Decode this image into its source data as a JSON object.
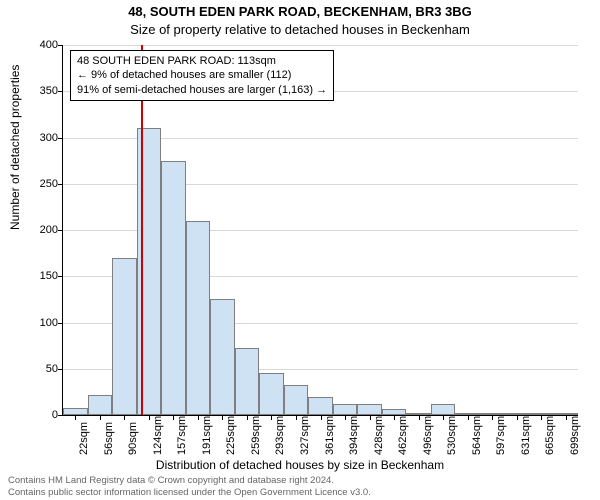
{
  "chart": {
    "type": "histogram",
    "title_main": "48, SOUTH EDEN PARK ROAD, BECKENHAM, BR3 3BG",
    "title_sub": "Size of property relative to detached houses in Beckenham",
    "ylabel": "Number of detached properties",
    "xlabel": "Distribution of detached houses by size in Beckenham",
    "background_color": "#ffffff",
    "bar_fill": "#cfe2f3",
    "bar_border": "#7f7f7f",
    "grid_color": "#d9d9d9",
    "reference_line_color": "#cc0000",
    "reference_value": 113,
    "ylim": [
      0,
      400
    ],
    "ytick_step": 50,
    "yticks": [
      0,
      50,
      100,
      150,
      200,
      250,
      300,
      350,
      400
    ],
    "x_categories": [
      "22sqm",
      "56sqm",
      "90sqm",
      "124sqm",
      "157sqm",
      "191sqm",
      "225sqm",
      "259sqm",
      "293sqm",
      "327sqm",
      "361sqm",
      "394sqm",
      "428sqm",
      "462sqm",
      "496sqm",
      "530sqm",
      "564sqm",
      "597sqm",
      "631sqm",
      "665sqm",
      "699sqm"
    ],
    "values": [
      8,
      22,
      170,
      310,
      275,
      210,
      125,
      72,
      45,
      32,
      20,
      12,
      12,
      7,
      2,
      12,
      1,
      2,
      0,
      2,
      1
    ],
    "annotation": {
      "line1": "48 SOUTH EDEN PARK ROAD: 113sqm",
      "line2": "← 9% of detached houses are smaller (112)",
      "line3": "91% of semi-detached houses are larger (1,163) →"
    },
    "title_fontsize": 13,
    "label_fontsize": 12,
    "tick_fontsize": 11,
    "annotation_fontsize": 11,
    "footer_fontsize": 9.5
  },
  "footer": {
    "line1": "Contains HM Land Registry data © Crown copyright and database right 2024.",
    "line2": "Contains public sector information licensed under the Open Government Licence v3.0."
  }
}
